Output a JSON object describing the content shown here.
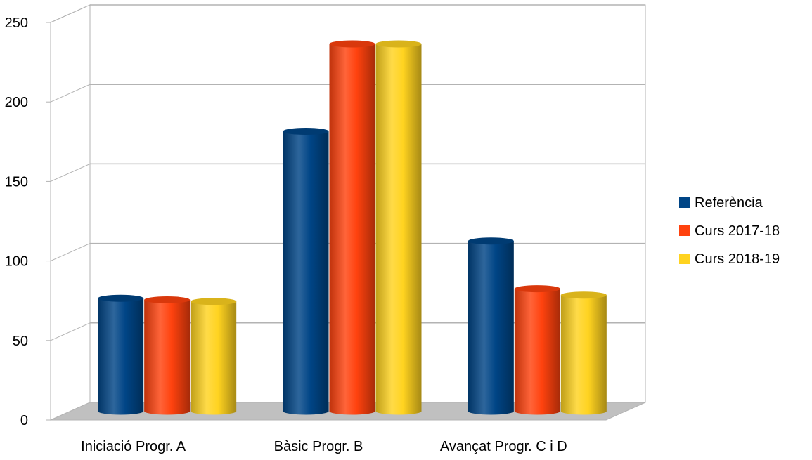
{
  "chart_data": {
    "type": "bar",
    "title": "",
    "xlabel": "",
    "ylabel": "",
    "categories": [
      "Iniciació Progr. A",
      "Bàsic Progr. B",
      "Avançat Progr. C i D"
    ],
    "series": [
      {
        "name": "Referència",
        "values": [
          71,
          176,
          107
        ],
        "color": "#004586"
      },
      {
        "name": "Curs 2017-18",
        "values": [
          70,
          231,
          77
        ],
        "color": "#ff420e"
      },
      {
        "name": "Curs 2018-19",
        "values": [
          69,
          231,
          73
        ],
        "color": "#ffd320"
      }
    ],
    "ylim": [
      0,
      250
    ],
    "yticks": [
      0,
      50,
      100,
      150,
      200,
      250
    ],
    "grid": true,
    "legend": "right",
    "style": "3d-cylinder"
  }
}
